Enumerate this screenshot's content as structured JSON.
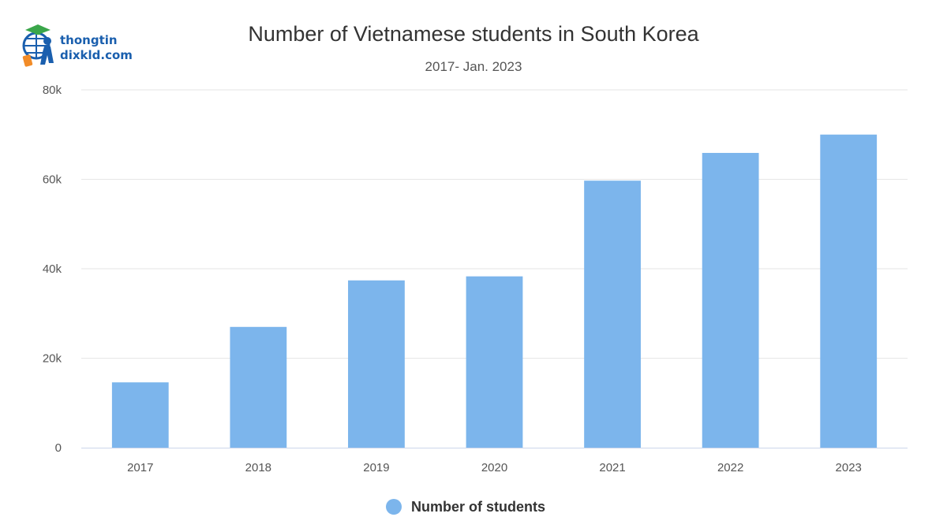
{
  "logo": {
    "line1": "thongtin",
    "line2": "dixkld.com"
  },
  "colors": {
    "bar": "#7cb5ec",
    "grid": "#e6e6e6",
    "axis": "#ccd6eb"
  },
  "chart_data": {
    "type": "bar",
    "title": "Number of Vietnamese students in South Korea",
    "subtitle": "2017- Jan. 2023",
    "categories": [
      "2017",
      "2018",
      "2019",
      "2020",
      "2021",
      "2022",
      "2023"
    ],
    "series": [
      {
        "name": "Number of students",
        "values": [
          14600,
          27000,
          37400,
          38300,
          59700,
          65900,
          70000
        ]
      }
    ],
    "ylim": [
      0,
      80000
    ],
    "yticks": [
      0,
      20000,
      40000,
      60000,
      80000
    ],
    "ytick_labels": [
      "0",
      "20k",
      "40k",
      "60k",
      "80k"
    ],
    "grid": true,
    "legend": "bottom-center"
  }
}
